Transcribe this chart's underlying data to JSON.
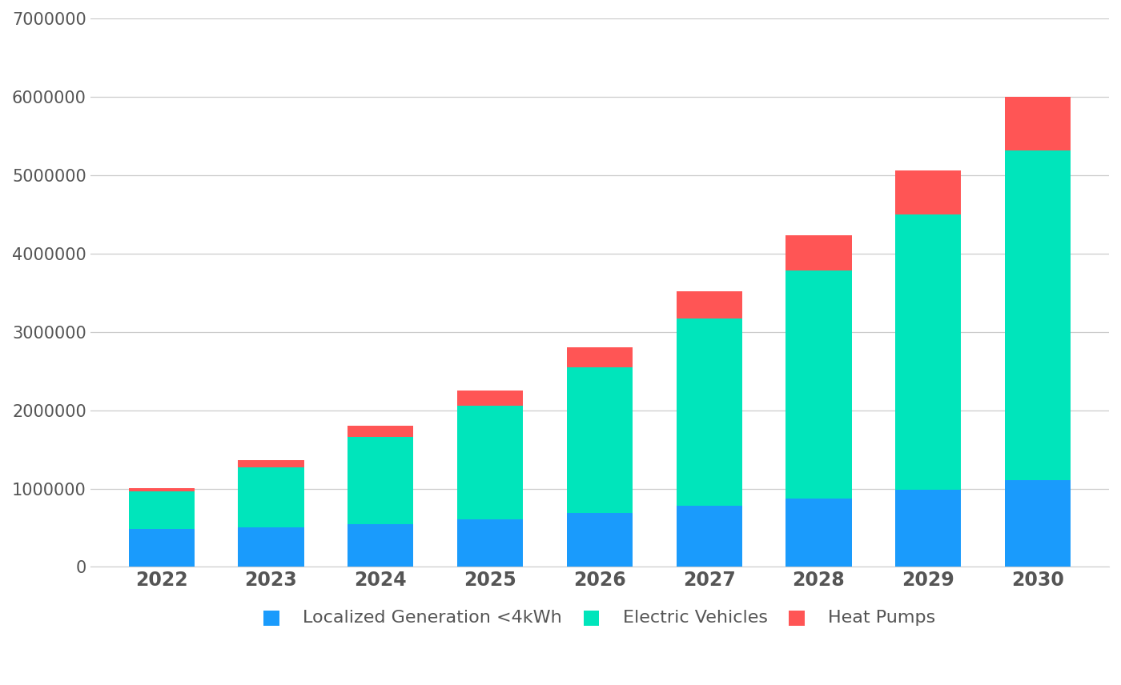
{
  "years": [
    2022,
    2023,
    2024,
    2025,
    2026,
    2027,
    2028,
    2029,
    2030
  ],
  "localized_generation": [
    480000,
    510000,
    550000,
    610000,
    690000,
    780000,
    870000,
    990000,
    1110000
  ],
  "electric_vehicles": [
    480000,
    760000,
    1110000,
    1450000,
    1860000,
    2390000,
    2910000,
    3510000,
    4200000
  ],
  "heat_pumps": [
    50000,
    90000,
    140000,
    195000,
    255000,
    350000,
    450000,
    560000,
    690000
  ],
  "colors": {
    "localized_generation": "#1a9bfc",
    "electric_vehicles": "#00e5bb",
    "heat_pumps": "#ff5555"
  },
  "legend_labels": [
    "Localized Generation <4kWh",
    "Electric Vehicles",
    "Heat Pumps"
  ],
  "ylim": [
    0,
    7000000
  ],
  "yticks": [
    0,
    1000000,
    2000000,
    3000000,
    4000000,
    5000000,
    6000000,
    7000000
  ],
  "background_color": "#ffffff",
  "plot_bg_color": "#ffffff",
  "grid_color": "#cccccc",
  "tick_color": "#555555",
  "bar_width": 0.6,
  "figsize": [
    14.0,
    8.56
  ]
}
